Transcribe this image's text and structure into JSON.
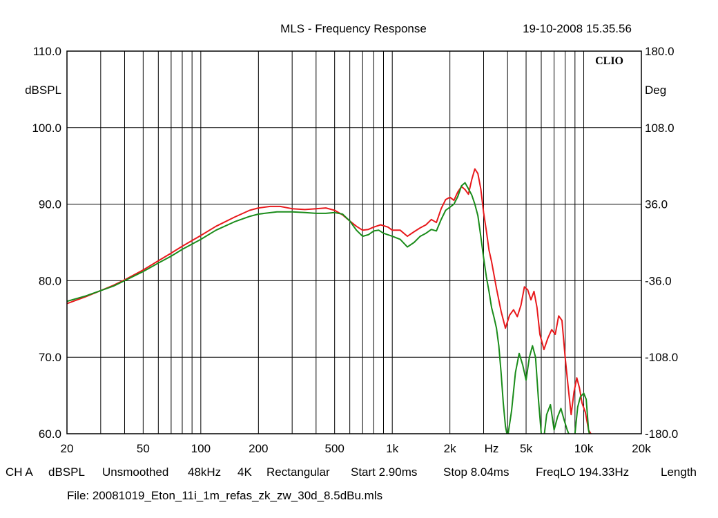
{
  "header": {
    "title": "MLS - Frequency Response",
    "timestamp": "19-10-2008 15.35.56",
    "brand": "CLIO"
  },
  "status_bar": {
    "channel": "CH A",
    "unit": "dBSPL",
    "smoothing": "Unsmoothed",
    "sample_rate": "48kHz",
    "size": "4K",
    "window": "Rectangular",
    "start": "Start 2.90ms",
    "stop": "Stop 8.04ms",
    "freq_lo": "FreqLO 194.33Hz",
    "length": "Length"
  },
  "file_line": "File: 20081019_Eton_11i_1m_refas_zk_zw_30d_8.5dBu.mls",
  "chart_data": {
    "type": "line",
    "title": "MLS - Frequency Response",
    "x_scale": "log",
    "xlim": [
      20,
      20000
    ],
    "ylim": [
      60,
      110
    ],
    "y2lim": [
      -180,
      180
    ],
    "ylabel": "dBSPL",
    "y2label": "Deg",
    "xlabel": "Hz",
    "grid": true,
    "x_ticks": [
      {
        "value": 20,
        "label": "20"
      },
      {
        "value": 50,
        "label": "50"
      },
      {
        "value": 100,
        "label": "100"
      },
      {
        "value": 200,
        "label": "200"
      },
      {
        "value": 500,
        "label": "500"
      },
      {
        "value": 1000,
        "label": "1k"
      },
      {
        "value": 2000,
        "label": "2k"
      },
      {
        "value": 5000,
        "label": "5k"
      },
      {
        "value": 10000,
        "label": "10k"
      },
      {
        "value": 20000,
        "label": "20k"
      }
    ],
    "x_unit_tick": {
      "value": 3300,
      "label": "Hz"
    },
    "y_ticks": [
      {
        "value": 110,
        "label": "110.0"
      },
      {
        "value": 100,
        "label": "100.0"
      },
      {
        "value": 90,
        "label": "90.0"
      },
      {
        "value": 80,
        "label": "80.0"
      },
      {
        "value": 70,
        "label": "70.0"
      },
      {
        "value": 60,
        "label": "60.0"
      }
    ],
    "y2_ticks": [
      {
        "value": 180,
        "label": "180.0"
      },
      {
        "value": 108,
        "label": "108.0"
      },
      {
        "value": 36,
        "label": "36.0"
      },
      {
        "value": -36,
        "label": "-36.0"
      },
      {
        "value": -108,
        "label": "-108.0"
      },
      {
        "value": -180,
        "label": "-180.0"
      }
    ],
    "series": [
      {
        "color": "#e8191c",
        "points": [
          [
            20,
            77.0
          ],
          [
            25,
            77.9
          ],
          [
            30,
            78.7
          ],
          [
            35,
            79.4
          ],
          [
            40,
            80.1
          ],
          [
            50,
            81.4
          ],
          [
            60,
            82.6
          ],
          [
            70,
            83.6
          ],
          [
            80,
            84.5
          ],
          [
            100,
            85.9
          ],
          [
            120,
            87.1
          ],
          [
            150,
            88.3
          ],
          [
            180,
            89.2
          ],
          [
            200,
            89.5
          ],
          [
            230,
            89.7
          ],
          [
            260,
            89.7
          ],
          [
            300,
            89.4
          ],
          [
            350,
            89.3
          ],
          [
            400,
            89.4
          ],
          [
            450,
            89.5
          ],
          [
            500,
            89.2
          ],
          [
            550,
            88.6
          ],
          [
            600,
            87.8
          ],
          [
            650,
            87.1
          ],
          [
            700,
            86.6
          ],
          [
            750,
            86.7
          ],
          [
            800,
            87.0
          ],
          [
            870,
            87.3
          ],
          [
            950,
            87.0
          ],
          [
            1000,
            86.6
          ],
          [
            1100,
            86.6
          ],
          [
            1200,
            85.8
          ],
          [
            1300,
            86.4
          ],
          [
            1400,
            86.9
          ],
          [
            1500,
            87.3
          ],
          [
            1600,
            88.0
          ],
          [
            1700,
            87.6
          ],
          [
            1800,
            89.4
          ],
          [
            1900,
            90.6
          ],
          [
            2000,
            90.9
          ],
          [
            2100,
            90.5
          ],
          [
            2200,
            91.6
          ],
          [
            2300,
            92.3
          ],
          [
            2400,
            91.9
          ],
          [
            2500,
            91.3
          ],
          [
            2600,
            93.2
          ],
          [
            2700,
            94.6
          ],
          [
            2800,
            94.0
          ],
          [
            2900,
            92.0
          ],
          [
            3000,
            88.9
          ],
          [
            3100,
            86.5
          ],
          [
            3200,
            84.0
          ],
          [
            3300,
            82.5
          ],
          [
            3500,
            79.0
          ],
          [
            3700,
            76.0
          ],
          [
            3900,
            73.8
          ],
          [
            4100,
            75.5
          ],
          [
            4300,
            76.2
          ],
          [
            4500,
            75.3
          ],
          [
            4700,
            76.8
          ],
          [
            4900,
            79.2
          ],
          [
            5100,
            78.8
          ],
          [
            5300,
            77.5
          ],
          [
            5500,
            78.6
          ],
          [
            5700,
            76.5
          ],
          [
            5900,
            73.0
          ],
          [
            6200,
            71.0
          ],
          [
            6500,
            72.5
          ],
          [
            6800,
            73.6
          ],
          [
            7100,
            73.0
          ],
          [
            7400,
            75.4
          ],
          [
            7700,
            74.8
          ],
          [
            8000,
            70.0
          ],
          [
            8300,
            66.0
          ],
          [
            8600,
            62.5
          ],
          [
            8900,
            65.5
          ],
          [
            9200,
            67.3
          ],
          [
            9500,
            66.0
          ],
          [
            9800,
            64.0
          ],
          [
            10200,
            62.8
          ],
          [
            10600,
            60.5
          ],
          [
            10900,
            60.0
          ]
        ]
      },
      {
        "color": "#1a8c1a",
        "points": [
          [
            20,
            77.3
          ],
          [
            25,
            78.0
          ],
          [
            30,
            78.7
          ],
          [
            35,
            79.3
          ],
          [
            40,
            80.0
          ],
          [
            50,
            81.2
          ],
          [
            60,
            82.3
          ],
          [
            70,
            83.2
          ],
          [
            80,
            84.1
          ],
          [
            100,
            85.4
          ],
          [
            120,
            86.6
          ],
          [
            150,
            87.7
          ],
          [
            180,
            88.4
          ],
          [
            200,
            88.7
          ],
          [
            250,
            89.0
          ],
          [
            300,
            89.0
          ],
          [
            350,
            88.9
          ],
          [
            400,
            88.8
          ],
          [
            450,
            88.8
          ],
          [
            500,
            88.9
          ],
          [
            550,
            88.7
          ],
          [
            600,
            87.8
          ],
          [
            650,
            86.6
          ],
          [
            700,
            85.8
          ],
          [
            750,
            86.0
          ],
          [
            800,
            86.5
          ],
          [
            850,
            86.6
          ],
          [
            900,
            86.2
          ],
          [
            1000,
            85.8
          ],
          [
            1100,
            85.4
          ],
          [
            1200,
            84.4
          ],
          [
            1300,
            85.0
          ],
          [
            1400,
            85.8
          ],
          [
            1500,
            86.2
          ],
          [
            1600,
            86.7
          ],
          [
            1700,
            86.5
          ],
          [
            1800,
            88.0
          ],
          [
            1900,
            89.2
          ],
          [
            2000,
            89.6
          ],
          [
            2100,
            90.0
          ],
          [
            2200,
            91.0
          ],
          [
            2300,
            92.4
          ],
          [
            2400,
            92.8
          ],
          [
            2500,
            92.0
          ],
          [
            2600,
            91.2
          ],
          [
            2700,
            90.0
          ],
          [
            2800,
            88.5
          ],
          [
            2900,
            85.8
          ],
          [
            3000,
            83.0
          ],
          [
            3100,
            80.5
          ],
          [
            3200,
            78.6
          ],
          [
            3300,
            76.5
          ],
          [
            3400,
            75.2
          ],
          [
            3500,
            73.8
          ],
          [
            3600,
            71.5
          ],
          [
            3700,
            68.0
          ],
          [
            3800,
            64.0
          ],
          [
            3900,
            61.0
          ],
          [
            4000,
            59.5
          ],
          [
            4200,
            63.0
          ],
          [
            4400,
            68.0
          ],
          [
            4600,
            70.5
          ],
          [
            4800,
            69.0
          ],
          [
            5000,
            67.0
          ],
          [
            5200,
            70.0
          ],
          [
            5400,
            71.5
          ],
          [
            5600,
            70.0
          ],
          [
            5800,
            64.5
          ],
          [
            6000,
            60.0
          ],
          [
            6200,
            59.5
          ],
          [
            6400,
            62.5
          ],
          [
            6700,
            63.8
          ],
          [
            7000,
            60.5
          ],
          [
            7300,
            62.2
          ],
          [
            7600,
            63.3
          ],
          [
            7900,
            61.8
          ],
          [
            8200,
            60.5
          ],
          [
            8500,
            59.5
          ],
          [
            9000,
            60.0
          ],
          [
            9300,
            63.5
          ],
          [
            9600,
            64.8
          ],
          [
            10000,
            65.3
          ],
          [
            10300,
            64.5
          ],
          [
            10600,
            60.5
          ],
          [
            10800,
            59.5
          ]
        ]
      }
    ]
  }
}
